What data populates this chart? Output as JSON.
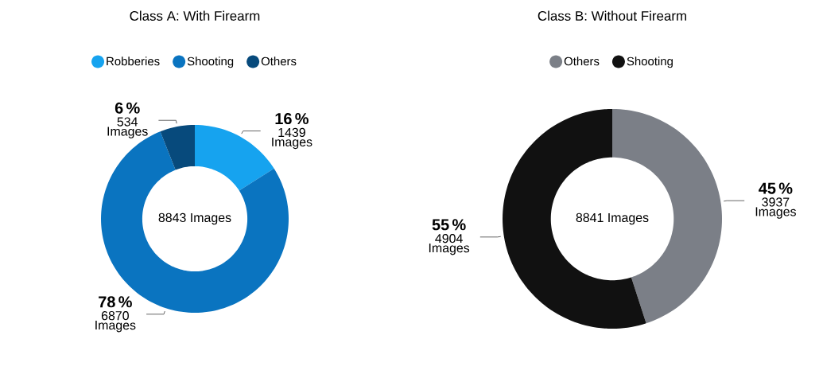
{
  "chart_data": [
    {
      "type": "donut",
      "title": "Class A: With Firearm",
      "categories": [
        "Robberies",
        "Shooting",
        "Others"
      ],
      "values": [
        16,
        78,
        6
      ],
      "colors": [
        "#16a3ef",
        "#0a74c0",
        "#074a7c"
      ],
      "value_labels": [
        "16 %",
        "78 %",
        "6 %"
      ],
      "annotations": [
        "1439 Images",
        "6870 Images",
        "534 Images",
        "8843 Images"
      ],
      "legend": "top"
    },
    {
      "type": "donut",
      "title": "Class B: Without Firearm",
      "categories": [
        "Others",
        "Shooting"
      ],
      "values": [
        45,
        55
      ],
      "colors": [
        "#7b7f87",
        "#111111"
      ],
      "value_labels": [
        "45 %",
        "55 %"
      ],
      "annotations": [
        "3937 Images",
        "4904 Images",
        "8841 Images"
      ],
      "legend": "top"
    }
  ]
}
